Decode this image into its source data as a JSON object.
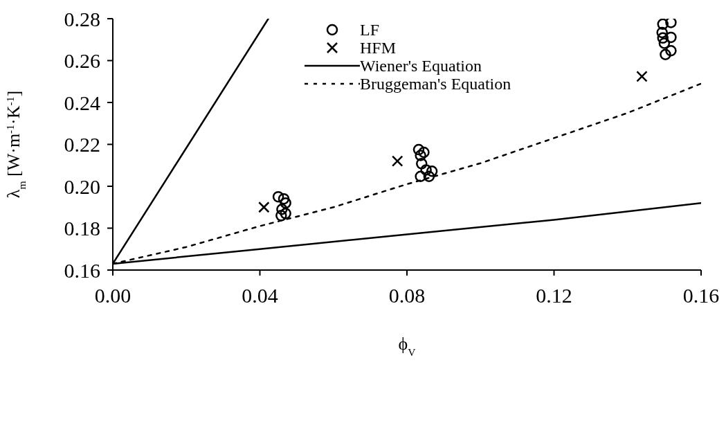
{
  "chart_data": {
    "type": "scatter",
    "xlabel": "ϕ$_{V}$",
    "ylabel": "λ$_{m}$ [W·m$^{-1}$·K$^{-1}$]",
    "xlim": [
      0,
      0.16
    ],
    "xticks": [
      {
        "value": 0,
        "label": "0.00"
      },
      0.04,
      0.08,
      0.12,
      0.16
    ],
    "ylim": [
      0.16,
      0.28
    ],
    "yticks": [
      0.16,
      0.18,
      {
        "value": 0.2,
        "label": "0.20"
      },
      0.22,
      0.24,
      0.26,
      0.28
    ],
    "grid": false,
    "legend": "top",
    "series": [
      {
        "name": "LF",
        "marker": "circle",
        "color": "#000000",
        "x": [
          0.045,
          0.0465,
          0.047,
          0.046,
          0.047,
          0.0458,
          0.0832,
          0.0846,
          0.0837,
          0.084,
          0.0852,
          0.0868,
          0.0837,
          0.086,
          0.1496,
          0.1518,
          0.1494,
          0.1518,
          0.1496,
          0.15,
          0.1518,
          0.1503
        ],
        "values": [
          0.195,
          0.194,
          0.192,
          0.189,
          0.187,
          0.186,
          0.2175,
          0.2162,
          0.2147,
          0.2108,
          0.2078,
          0.2072,
          0.2047,
          0.2047,
          0.2774,
          0.2782,
          0.2734,
          0.2711,
          0.2708,
          0.2683,
          0.2647,
          0.2629
        ]
      },
      {
        "name": "HFM",
        "marker": "cross",
        "color": "#000000",
        "x": [
          0.0411,
          0.0774,
          0.1439
        ],
        "values": [
          0.19,
          0.212,
          0.2524
        ]
      },
      {
        "name": "Wiener's Equation",
        "type": "line",
        "marker": "none",
        "line_style": "solid",
        "color": "#000000",
        "x": [
          0,
          0.0423
        ],
        "values": [
          0.163,
          0.28
        ]
      },
      {
        "type": "line",
        "marker": "none",
        "line_style": "solid",
        "color": "#000000",
        "x": [
          0,
          0.04,
          0.08,
          0.12,
          0.16
        ],
        "values": [
          0.163,
          0.17,
          0.177,
          0.184,
          0.192
        ]
      },
      {
        "name": "Bruggeman's Equation",
        "type": "line",
        "marker": "none",
        "line_style": "dotted",
        "color": "#000000",
        "x": [
          0,
          0.02,
          0.04,
          0.06,
          0.08,
          0.1,
          0.12,
          0.14,
          0.16
        ],
        "values": [
          0.163,
          0.171,
          0.181,
          0.19,
          0.201,
          0.211,
          0.223,
          0.235,
          0.249
        ]
      }
    ]
  }
}
